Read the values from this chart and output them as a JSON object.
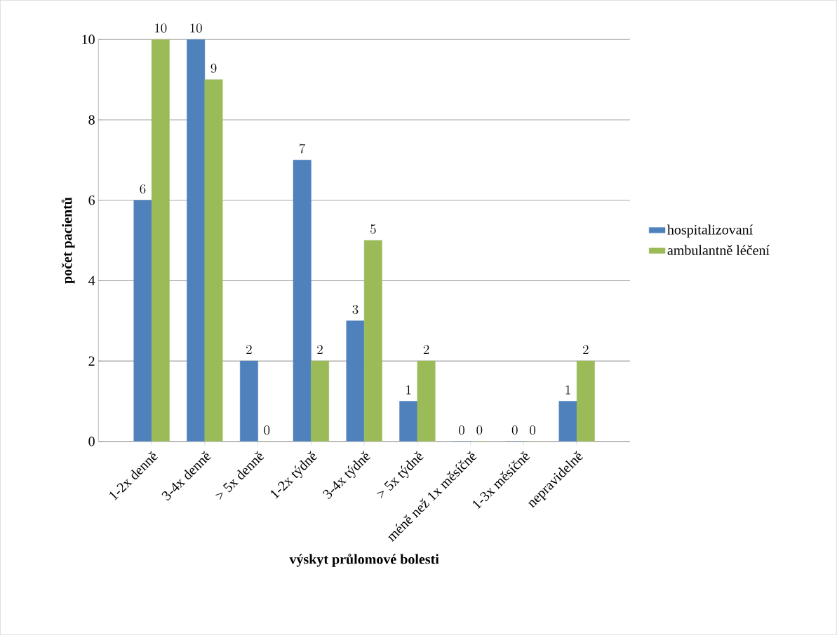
{
  "chart_data": {
    "type": "bar",
    "xlabel": "výskyt průlomové bolesti",
    "ylabel": "počet pacientů",
    "categories": [
      "1-2x denně",
      "3-4x denně",
      "> 5x denně",
      "1-2x týdně",
      "3-4x týdně",
      "> 5x týdně",
      "méně než 1x měsíčně",
      "1-3x měsíčně",
      "nepravidelně"
    ],
    "series": [
      {
        "name": "hospitalizovaní",
        "color": "#4f81bd",
        "values": [
          6,
          10,
          2,
          7,
          3,
          1,
          0,
          0,
          1
        ]
      },
      {
        "name": "ambulantně léčení",
        "color": "#9bbb59",
        "values": [
          10,
          9,
          0,
          2,
          5,
          2,
          0,
          0,
          2
        ]
      }
    ],
    "ylim": [
      0,
      10
    ],
    "yticks": [
      0,
      2,
      4,
      6,
      8,
      10
    ],
    "grid": "y",
    "legend": "right",
    "data_labels": true
  }
}
